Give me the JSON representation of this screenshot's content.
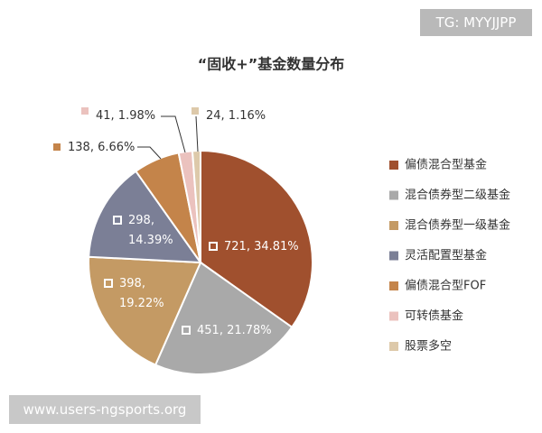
{
  "chart_data": {
    "type": "pie",
    "title": "“固收+”基金数量分布",
    "categories": [
      "偏债混合型基金",
      "混合债券型二级基金",
      "混合债券型一级基金",
      "灵活配置型基金",
      "偏债混合型FOF",
      "可转债基金",
      "股票多空"
    ],
    "values": [
      721,
      451,
      398,
      298,
      138,
      41,
      24
    ],
    "value_labels": [
      "721, 34.81%",
      "451, 21.78%",
      "398, 19.22%",
      "298, 14.39%",
      "138, 6.66%",
      "41, 1.98%",
      "24, 1.16%"
    ],
    "colors": [
      "#a0502e",
      "#a9a9a9",
      "#c49a64",
      "#7b7f96",
      "#c4844a",
      "#ebc2be",
      "#ddc9aa"
    ],
    "legend": "right"
  },
  "watermarks": {
    "top_right": "TG: MYYJJPP",
    "bottom_left": "www.users-ngsports.org"
  }
}
